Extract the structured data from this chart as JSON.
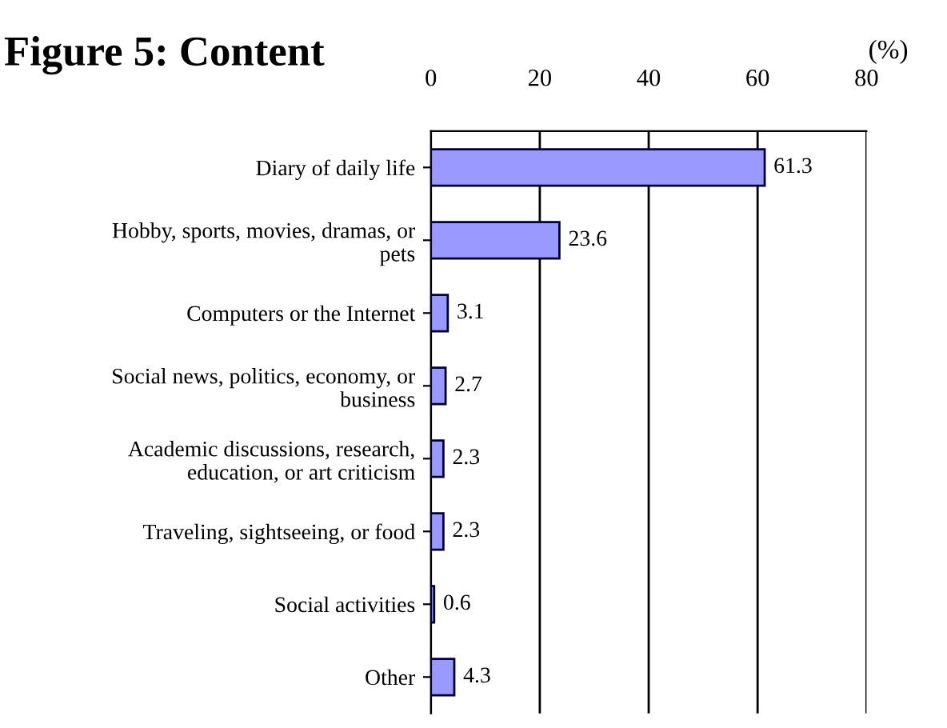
{
  "chart_data": {
    "type": "bar",
    "orientation": "horizontal",
    "title": "Figure 5: Content",
    "xlabel": "(%)",
    "categories": [
      "Diary of daily life",
      "Hobby, sports, movies, dramas, or\npets",
      "Computers or the Internet",
      "Social news, politics, economy, or\nbusiness",
      "Academic discussions, research,\neducation, or art criticism",
      "Traveling, sightseeing, or food",
      "Social activities",
      "Other"
    ],
    "values": [
      61.3,
      23.6,
      3.1,
      2.7,
      2.3,
      2.3,
      0.6,
      4.3
    ],
    "color": "#9999ff",
    "xlim": [
      0,
      80
    ],
    "xticks": [
      0,
      20,
      40,
      60,
      80
    ],
    "grid": "x",
    "data_labels": true
  }
}
